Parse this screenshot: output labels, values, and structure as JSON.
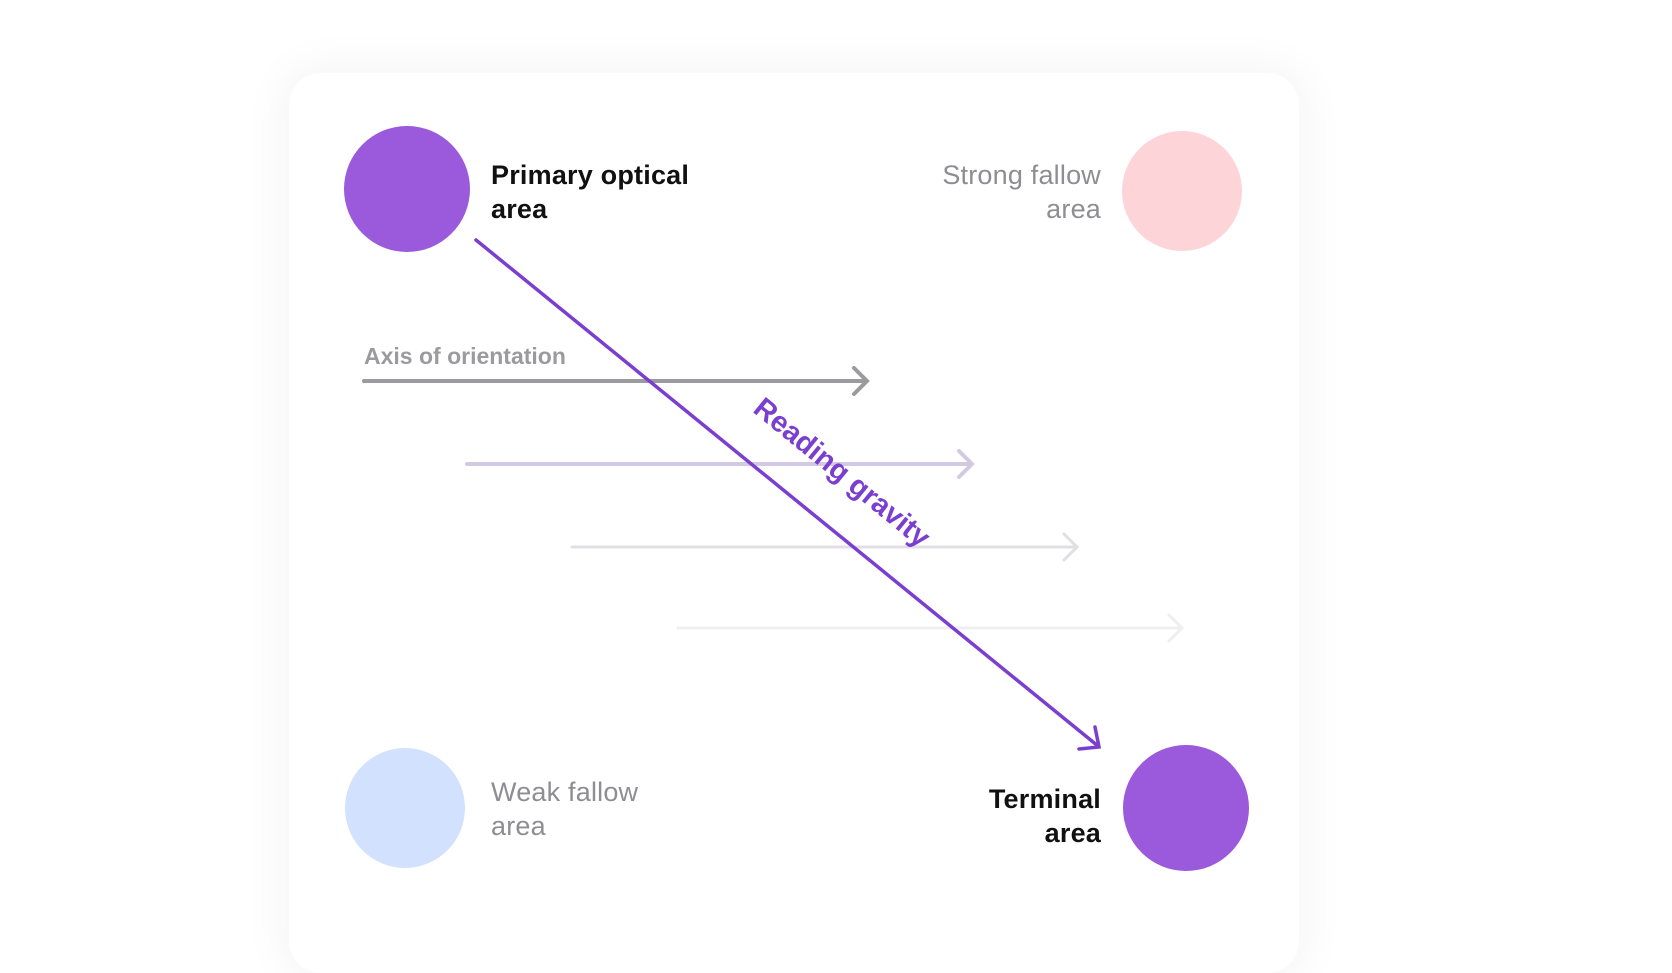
{
  "labels": {
    "primary": "Primary optical area",
    "strong": "Strong fallow area",
    "weak": "Weak fallow area",
    "terminal": "Terminal area",
    "axis": "Axis of orientation",
    "gravity": "Reading gravity"
  },
  "colors": {
    "primary": "#9b59db",
    "strong": "#fdd5d8",
    "weak": "#d2e1fd",
    "terminal": "#9b59db",
    "gravity": "#7b3fd0",
    "axis": "#9b9a9f"
  }
}
